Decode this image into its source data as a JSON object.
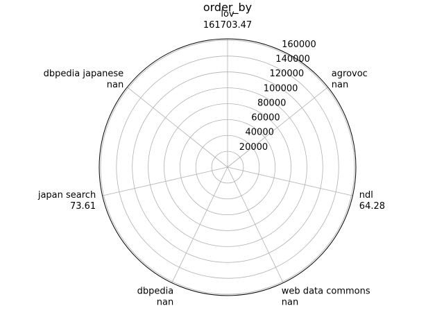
{
  "chart_data": {
    "type": "radar",
    "title": "order_by",
    "categories": [
      "lov",
      "agrovoc",
      "ndl",
      "web data commons",
      "dbpedia",
      "japan search",
      "dbpedia japanese"
    ],
    "value_labels": [
      "161703.47",
      "nan",
      "64.28",
      "nan",
      "nan",
      "73.61",
      "nan"
    ],
    "values": [
      161703.47,
      null,
      64.28,
      null,
      null,
      73.61,
      null
    ],
    "radial_ticks": [
      20000,
      40000,
      60000,
      80000,
      100000,
      120000,
      140000,
      160000
    ],
    "rlim": [
      0,
      161703.47
    ],
    "grid": true,
    "colors": {
      "grid": "#b0b0b0",
      "frame": "#000000",
      "text": "#000000"
    }
  }
}
